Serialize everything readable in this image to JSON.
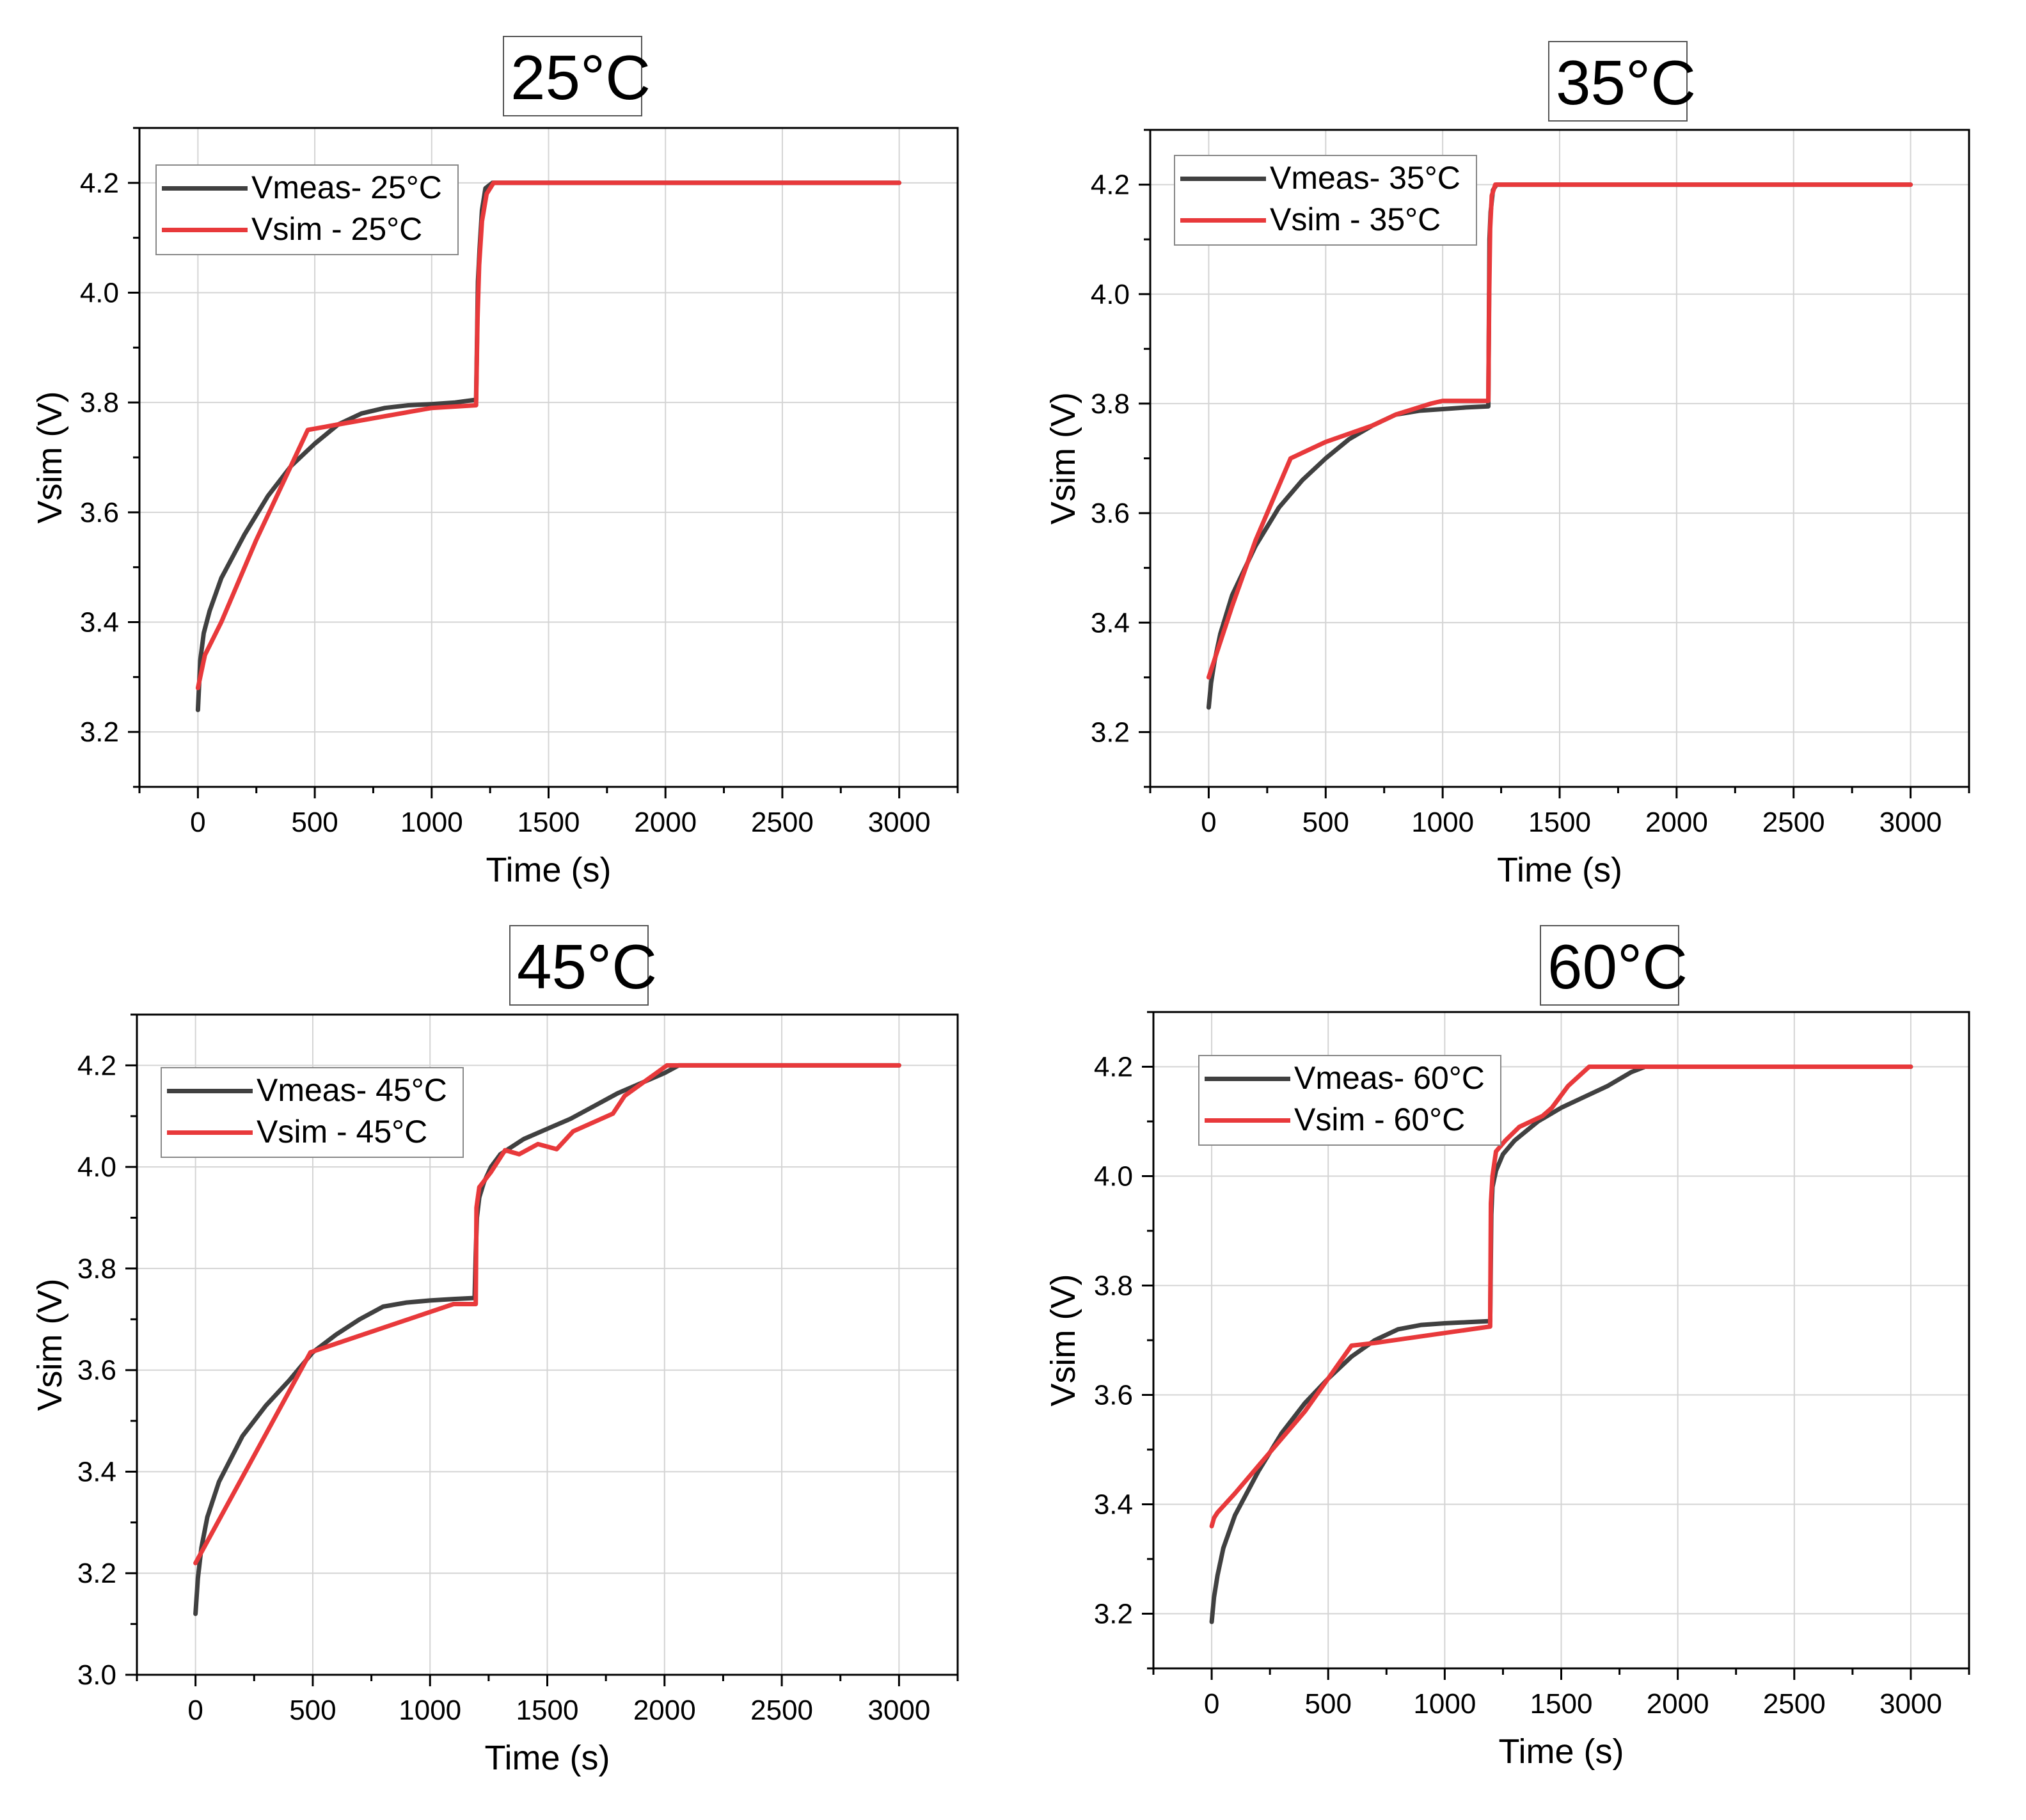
{
  "colors": {
    "measured": "#404040",
    "simulated": "#e8393b",
    "grid": "#d4d4d4",
    "axis": "#000000"
  },
  "chart_data": [
    {
      "type": "line",
      "title": "25°C",
      "xlabel": "Time (s)",
      "ylabel": "Vsim (V)",
      "xlim": [
        -250,
        3250
      ],
      "ylim": [
        3.1,
        4.3
      ],
      "xticks": [
        0,
        500,
        1000,
        1500,
        2000,
        2500,
        3000
      ],
      "xtick_labels": [
        "0",
        "500",
        "1000",
        "1500",
        "2000",
        "2500",
        "3000"
      ],
      "yticks": [
        3.2,
        3.4,
        3.6,
        3.8,
        4.0,
        4.2
      ],
      "ytick_labels": [
        "3.2",
        "3.4",
        "3.6",
        "3.8",
        "4.0",
        "4.2"
      ],
      "grid": true,
      "legend_position": "top-left",
      "series": [
        {
          "name": "Vmeas- 25°C",
          "color": "#404040",
          "x": [
            0,
            10,
            25,
            50,
            100,
            200,
            300,
            400,
            500,
            600,
            700,
            800,
            900,
            1000,
            1100,
            1190,
            1198,
            1205,
            1215,
            1230,
            1260,
            3000
          ],
          "y": [
            3.24,
            3.33,
            3.38,
            3.42,
            3.48,
            3.56,
            3.63,
            3.685,
            3.725,
            3.76,
            3.78,
            3.79,
            3.795,
            3.797,
            3.8,
            3.805,
            4.02,
            4.08,
            4.15,
            4.19,
            4.2,
            4.2
          ]
        },
        {
          "name": "Vsim - 25°C",
          "color": "#e8393b",
          "x": [
            0,
            30,
            100,
            250,
            470,
            600,
            1000,
            1190,
            1196,
            1203,
            1215,
            1235,
            1265,
            3000
          ],
          "y": [
            3.28,
            3.34,
            3.4,
            3.55,
            3.75,
            3.76,
            3.79,
            3.795,
            3.95,
            4.05,
            4.13,
            4.18,
            4.2,
            4.2
          ]
        }
      ]
    },
    {
      "type": "line",
      "title": "35°C",
      "xlabel": "Time (s)",
      "ylabel": "Vsim (V)",
      "xlim": [
        -250,
        3250
      ],
      "ylim": [
        3.1,
        4.3
      ],
      "xticks": [
        0,
        500,
        1000,
        1500,
        2000,
        2500,
        3000
      ],
      "xtick_labels": [
        "0",
        "500",
        "1000",
        "1500",
        "2000",
        "2500",
        "3000"
      ],
      "yticks": [
        3.2,
        3.4,
        3.6,
        3.8,
        4.0,
        4.2
      ],
      "ytick_labels": [
        "3.2",
        "3.4",
        "3.6",
        "3.8",
        "4.0",
        "4.2"
      ],
      "grid": true,
      "legend_position": "top-left",
      "series": [
        {
          "name": "Vmeas- 35°C",
          "color": "#404040",
          "x": [
            0,
            10,
            25,
            50,
            100,
            200,
            300,
            400,
            500,
            600,
            700,
            800,
            900,
            1000,
            1100,
            1195,
            1200,
            1205,
            1215,
            1230,
            3000
          ],
          "y": [
            3.245,
            3.29,
            3.33,
            3.38,
            3.45,
            3.54,
            3.61,
            3.66,
            3.7,
            3.735,
            3.76,
            3.78,
            3.787,
            3.79,
            3.793,
            3.795,
            4.1,
            4.15,
            4.19,
            4.2,
            4.2
          ]
        },
        {
          "name": "Vsim - 35°C",
          "color": "#e8393b",
          "x": [
            0,
            100,
            200,
            350,
            500,
            700,
            800,
            950,
            1000,
            1195,
            1199,
            1203,
            1210,
            1225,
            3000
          ],
          "y": [
            3.3,
            3.43,
            3.55,
            3.7,
            3.73,
            3.76,
            3.78,
            3.8,
            3.805,
            3.805,
            4.0,
            4.12,
            4.18,
            4.2,
            4.2
          ]
        }
      ]
    },
    {
      "type": "line",
      "title": "45°C",
      "xlabel": "Time (s)",
      "ylabel": "Vsim (V)",
      "xlim": [
        -250,
        3250
      ],
      "ylim": [
        3.0,
        4.3
      ],
      "xticks": [
        0,
        500,
        1000,
        1500,
        2000,
        2500,
        3000
      ],
      "xtick_labels": [
        "0",
        "500",
        "1000",
        "1500",
        "2000",
        "2500",
        "3000"
      ],
      "yticks": [
        3.0,
        3.2,
        3.4,
        3.6,
        3.8,
        4.0,
        4.2
      ],
      "ytick_labels": [
        "3.0",
        "3.2",
        "3.4",
        "3.6",
        "3.8",
        "4.0",
        "4.2"
      ],
      "grid": true,
      "legend_position": "top-left",
      "series": [
        {
          "name": "Vmeas- 45°C",
          "color": "#404040",
          "x": [
            0,
            10,
            25,
            50,
            100,
            200,
            300,
            400,
            500,
            600,
            700,
            800,
            900,
            1000,
            1100,
            1190,
            1195,
            1200,
            1210,
            1230,
            1260,
            1300,
            1400,
            1500,
            1600,
            1700,
            1800,
            1900,
            2000,
            2060,
            3000
          ],
          "y": [
            3.12,
            3.19,
            3.25,
            3.31,
            3.38,
            3.47,
            3.53,
            3.58,
            3.635,
            3.67,
            3.7,
            3.725,
            3.733,
            3.737,
            3.74,
            3.742,
            3.83,
            3.9,
            3.94,
            3.97,
            4.0,
            4.025,
            4.055,
            4.075,
            4.095,
            4.12,
            4.145,
            4.165,
            4.185,
            4.2,
            4.2
          ]
        },
        {
          "name": "Vsim - 45°C",
          "color": "#e8393b",
          "x": [
            0,
            490,
            1100,
            1195,
            1198,
            1210,
            1260,
            1320,
            1380,
            1460,
            1540,
            1610,
            1780,
            1830,
            1950,
            2010,
            3000
          ],
          "y": [
            3.22,
            3.635,
            3.73,
            3.73,
            3.92,
            3.96,
            3.99,
            4.033,
            4.025,
            4.045,
            4.035,
            4.07,
            4.105,
            4.14,
            4.18,
            4.2,
            4.2
          ]
        }
      ]
    },
    {
      "type": "line",
      "title": "60°C",
      "xlabel": "Time (s)",
      "ylabel": "Vsim (V)",
      "xlim": [
        -250,
        3250
      ],
      "ylim": [
        3.1,
        4.3
      ],
      "xticks": [
        0,
        500,
        1000,
        1500,
        2000,
        2500,
        3000
      ],
      "xtick_labels": [
        "0",
        "500",
        "1000",
        "1500",
        "2000",
        "2500",
        "3000"
      ],
      "yticks": [
        3.2,
        3.4,
        3.6,
        3.8,
        4.0,
        4.2
      ],
      "ytick_labels": [
        "3.2",
        "3.4",
        "3.6",
        "3.8",
        "4.0",
        "4.2"
      ],
      "grid": true,
      "legend_position": "top-left",
      "series": [
        {
          "name": "Vmeas- 60°C",
          "color": "#404040",
          "x": [
            0,
            10,
            25,
            50,
            100,
            200,
            300,
            400,
            500,
            600,
            700,
            800,
            900,
            1000,
            1100,
            1195,
            1200,
            1205,
            1220,
            1250,
            1300,
            1400,
            1500,
            1600,
            1700,
            1800,
            1860,
            3000
          ],
          "y": [
            3.185,
            3.23,
            3.27,
            3.32,
            3.38,
            3.46,
            3.53,
            3.585,
            3.63,
            3.67,
            3.7,
            3.72,
            3.728,
            3.731,
            3.733,
            3.735,
            3.93,
            3.98,
            4.01,
            4.04,
            4.065,
            4.1,
            4.125,
            4.145,
            4.165,
            4.19,
            4.2,
            4.2
          ]
        },
        {
          "name": "Vsim - 60°C",
          "color": "#e8393b",
          "x": [
            0,
            10,
            25,
            100,
            200,
            300,
            400,
            500,
            600,
            700,
            1195,
            1198,
            1205,
            1220,
            1260,
            1320,
            1420,
            1460,
            1530,
            1620,
            3000
          ],
          "y": [
            3.36,
            3.375,
            3.385,
            3.42,
            3.47,
            3.52,
            3.57,
            3.63,
            3.69,
            3.695,
            3.725,
            3.95,
            4.0,
            4.045,
            4.065,
            4.09,
            4.11,
            4.125,
            4.165,
            4.2,
            4.2
          ]
        }
      ]
    }
  ]
}
